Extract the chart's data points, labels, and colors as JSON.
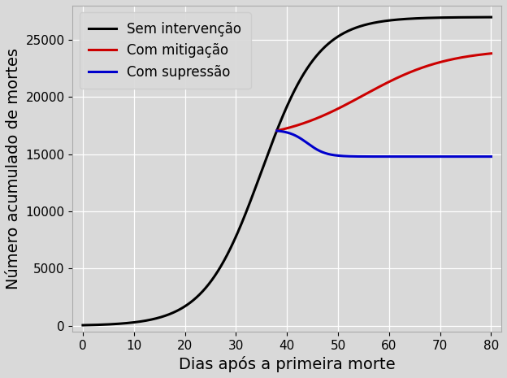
{
  "title": "",
  "xlabel": "Dias após a primeira morte",
  "ylabel": "Número acumulado de mortes",
  "background_color": "#d9d9d9",
  "xlim": [
    -2,
    82
  ],
  "ylim": [
    -500,
    28000
  ],
  "xticks": [
    0,
    10,
    20,
    30,
    40,
    50,
    60,
    70,
    80
  ],
  "yticks": [
    0,
    5000,
    10000,
    15000,
    20000,
    25000
  ],
  "line_colors": [
    "#000000",
    "#cc0000",
    "#0000cc"
  ],
  "line_labels": [
    "Sem intervenção",
    "Com mitigação",
    "Com supressão"
  ],
  "line_width": 2.2,
  "legend_fontsize": 12,
  "axis_label_fontsize": 14,
  "tick_fontsize": 11,
  "sem_L": 27000,
  "sem_k": 0.18,
  "sem_x0": 35,
  "mit_L": 24200,
  "mit_k": 0.12,
  "mit_x0": 55,
  "mit_start": 38,
  "sup_plateau": 14800,
  "sup_k": 0.55,
  "sup_x0": 44,
  "sup_start": 38
}
